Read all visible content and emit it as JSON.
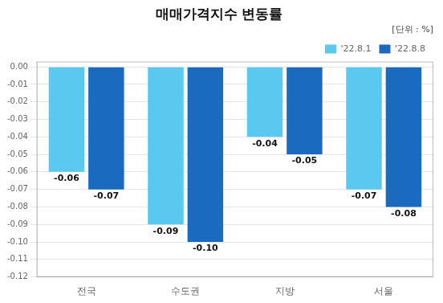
{
  "chart_data": {
    "type": "bar",
    "title": "매매가격지수 변동률",
    "subtitle": "[단위 : %]",
    "categories": [
      "전국",
      "수도권",
      "지방",
      "서울"
    ],
    "series": [
      {
        "name": "'22.8.1",
        "color": "#5bc8f0",
        "values": [
          -0.06,
          -0.09,
          -0.04,
          -0.07
        ],
        "value_labels": [
          "-0.06",
          "-0.09",
          "-0.04",
          "-0.07"
        ]
      },
      {
        "name": "'22.8.8",
        "color": "#1a6bbf",
        "values": [
          -0.07,
          -0.1,
          -0.05,
          -0.08
        ],
        "value_labels": [
          "-0.07",
          "-0.10",
          "-0.05",
          "-0.08"
        ]
      }
    ],
    "ylim": [
      -0.12,
      0.003
    ],
    "yticks": [
      {
        "value": 0.0,
        "label": "0.00"
      },
      {
        "value": -0.01,
        "label": "-0.01"
      },
      {
        "value": -0.02,
        "label": "-0.02"
      },
      {
        "value": -0.03,
        "label": "-0.03"
      },
      {
        "value": -0.04,
        "label": "-0.04"
      },
      {
        "value": -0.05,
        "label": "-0.05"
      },
      {
        "value": -0.06,
        "label": "-0.06"
      },
      {
        "value": -0.07,
        "label": "-0.07"
      },
      {
        "value": -0.08,
        "label": "-0.08"
      },
      {
        "value": -0.09,
        "label": "-0.09"
      },
      {
        "value": -0.1,
        "label": "-0.10"
      },
      {
        "value": -0.11,
        "label": "-0.11"
      },
      {
        "value": -0.12,
        "label": "-0.12"
      }
    ],
    "grid": true,
    "legend": "upper right",
    "data_labels": true
  }
}
